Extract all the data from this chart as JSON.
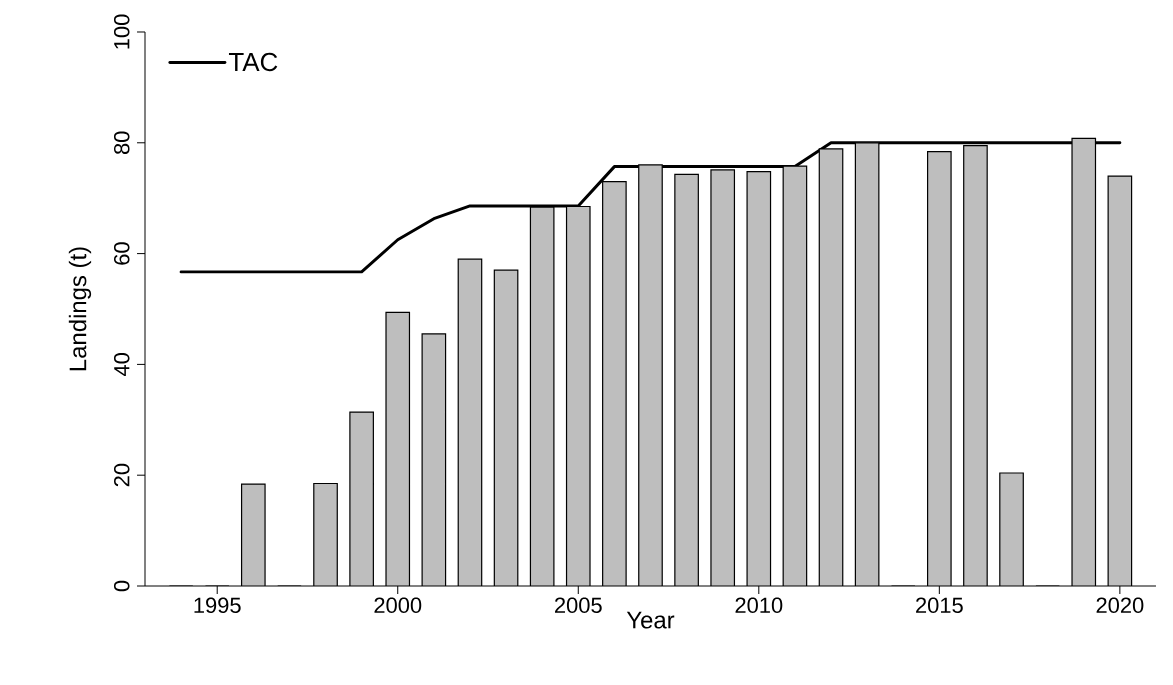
{
  "chart_data": {
    "type": "bar",
    "xlabel": "Year",
    "ylabel": "Landings (t)",
    "x": [
      1994,
      1995,
      1996,
      1997,
      1998,
      1999,
      2000,
      2001,
      2002,
      2003,
      2004,
      2005,
      2006,
      2007,
      2008,
      2009,
      2010,
      2011,
      2012,
      2013,
      2014,
      2015,
      2016,
      2017,
      2018,
      2019,
      2020
    ],
    "xlim": [
      1993,
      2021
    ],
    "xticks": [
      1995,
      2000,
      2005,
      2010,
      2015,
      2020
    ],
    "ylim": [
      0,
      100
    ],
    "yticks": [
      0,
      20,
      40,
      60,
      80,
      100
    ],
    "legend": "top left",
    "grid": false,
    "series": [
      {
        "color": "#bebebe",
        "values": [
          0,
          0,
          18.4,
          0,
          18.5,
          31.4,
          49.4,
          45.5,
          59.0,
          57.0,
          68.4,
          68.5,
          73.0,
          76.0,
          74.3,
          75.1,
          74.8,
          75.8,
          78.9,
          80.0,
          0,
          78.4,
          79.5,
          20.4,
          0,
          80.8,
          74.0
        ]
      },
      {
        "name": "TAC",
        "type": "line",
        "color": "#000000",
        "values": [
          56.7,
          56.7,
          56.7,
          56.7,
          56.7,
          56.7,
          62.5,
          66.3,
          68.6,
          68.6,
          68.6,
          68.6,
          75.7,
          75.7,
          75.7,
          75.7,
          75.7,
          75.7,
          80,
          80,
          80,
          80,
          80,
          80,
          80,
          80,
          80
        ]
      }
    ]
  }
}
